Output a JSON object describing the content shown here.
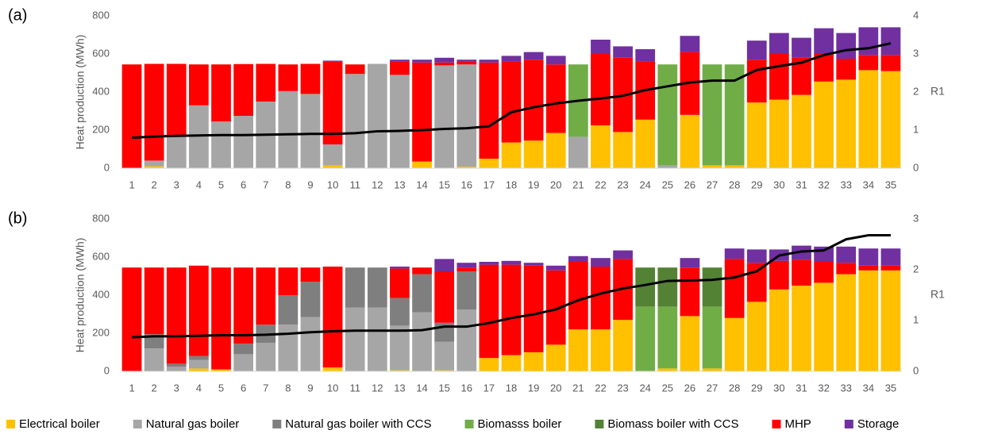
{
  "chart_data": [
    {
      "type": "bar",
      "stacked": true,
      "label": "(a)",
      "ylabel": "Heat production (MWh)",
      "y2label": "R1",
      "categories": [
        "1",
        "2",
        "3",
        "4",
        "5",
        "6",
        "7",
        "8",
        "9",
        "10",
        "11",
        "12",
        "13",
        "14",
        "15",
        "16",
        "17",
        "18",
        "19",
        "20",
        "21",
        "22",
        "23",
        "24",
        "25",
        "26",
        "27",
        "28",
        "29",
        "30",
        "31",
        "32",
        "33",
        "34",
        "35"
      ],
      "ylim": [
        0,
        800
      ],
      "yticks": [
        0,
        200,
        400,
        600,
        800
      ],
      "y2lim": [
        0,
        4
      ],
      "y2ticks": [
        0,
        1,
        2,
        3,
        4
      ],
      "grid": false,
      "series": [
        {
          "name": "Electrical boiler",
          "color": "#ffc000",
          "values": [
            0,
            10,
            0,
            0,
            0,
            0,
            0,
            0,
            0,
            15,
            0,
            0,
            0,
            35,
            0,
            8,
            50,
            135,
            145,
            185,
            0,
            225,
            190,
            255,
            0,
            280,
            15,
            15,
            345,
            360,
            385,
            455,
            465,
            515,
            510
          ]
        },
        {
          "name": "Natural gas boiler",
          "color": "#a6a6a6",
          "values": [
            0,
            30,
            165,
            330,
            245,
            275,
            350,
            405,
            390,
            110,
            495,
            548,
            490,
            0,
            540,
            537,
            0,
            0,
            0,
            0,
            165,
            0,
            0,
            0,
            15,
            0,
            0,
            0,
            0,
            0,
            0,
            0,
            0,
            0,
            0
          ]
        },
        {
          "name": "Natural gas boiler with CCS",
          "color": "#7f7f7f",
          "values": [
            0,
            0,
            0,
            0,
            0,
            0,
            0,
            0,
            0,
            0,
            0,
            0,
            0,
            0,
            0,
            0,
            0,
            0,
            0,
            0,
            0,
            0,
            0,
            0,
            0,
            0,
            0,
            0,
            0,
            0,
            0,
            0,
            0,
            0,
            0
          ]
        },
        {
          "name": "Biomasss boiler",
          "color": "#70ad47",
          "values": [
            0,
            0,
            0,
            0,
            0,
            0,
            0,
            0,
            0,
            0,
            0,
            0,
            0,
            0,
            0,
            0,
            0,
            0,
            0,
            0,
            380,
            0,
            0,
            0,
            530,
            0,
            530,
            530,
            0,
            0,
            0,
            0,
            0,
            0,
            0
          ]
        },
        {
          "name": "Biomass boiler with CCS",
          "color": "#548235",
          "values": [
            0,
            0,
            0,
            0,
            0,
            0,
            0,
            0,
            0,
            0,
            0,
            0,
            0,
            0,
            0,
            0,
            0,
            0,
            0,
            0,
            0,
            0,
            0,
            0,
            0,
            0,
            0,
            0,
            0,
            0,
            0,
            0,
            0,
            0,
            0
          ]
        },
        {
          "name": "MHP",
          "color": "#ff0000",
          "values": [
            545,
            508,
            383,
            215,
            300,
            272,
            198,
            140,
            158,
            435,
            50,
            0,
            70,
            520,
            15,
            15,
            505,
            425,
            425,
            360,
            0,
            375,
            390,
            305,
            0,
            330,
            0,
            0,
            225,
            240,
            195,
            145,
            110,
            80,
            85
          ]
        },
        {
          "name": "Storage",
          "color": "#7030a0",
          "values": [
            0,
            0,
            0,
            0,
            0,
            0,
            0,
            0,
            0,
            5,
            0,
            0,
            10,
            15,
            25,
            10,
            15,
            30,
            40,
            45,
            0,
            75,
            60,
            65,
            0,
            85,
            0,
            0,
            100,
            110,
            105,
            135,
            135,
            145,
            145
          ]
        },
        {
          "type": "line",
          "axis": "y2",
          "color": "#000000",
          "values": [
            0.8,
            0.83,
            0.85,
            0.86,
            0.87,
            0.87,
            0.88,
            0.89,
            0.9,
            0.9,
            0.92,
            0.97,
            0.98,
            1.0,
            1.03,
            1.05,
            1.1,
            1.47,
            1.6,
            1.7,
            1.77,
            1.83,
            1.9,
            2.05,
            2.15,
            2.25,
            2.3,
            2.3,
            2.58,
            2.68,
            2.77,
            2.97,
            3.1,
            3.15,
            3.28
          ]
        }
      ]
    },
    {
      "type": "bar",
      "stacked": true,
      "label": "(b)",
      "ylabel": "Heat production (MWh)",
      "y2label": "R1",
      "categories": [
        "1",
        "2",
        "3",
        "4",
        "5",
        "6",
        "7",
        "8",
        "9",
        "10",
        "11",
        "12",
        "13",
        "14",
        "15",
        "16",
        "17",
        "18",
        "19",
        "20",
        "21",
        "22",
        "23",
        "24",
        "25",
        "26",
        "27",
        "28",
        "29",
        "30",
        "31",
        "32",
        "33",
        "34",
        "35"
      ],
      "ylim": [
        0,
        800
      ],
      "yticks": [
        0,
        200,
        400,
        600,
        800
      ],
      "y2lim": [
        0,
        3
      ],
      "y2ticks": [
        0,
        1,
        2,
        3
      ],
      "grid": false,
      "series": [
        {
          "color": "#ffc000",
          "values": [
            0,
            0,
            0,
            15,
            10,
            0,
            0,
            0,
            0,
            20,
            0,
            0,
            5,
            0,
            5,
            0,
            70,
            85,
            100,
            140,
            220,
            220,
            270,
            0,
            15,
            290,
            15,
            280,
            365,
            430,
            450,
            465,
            510,
            530,
            530
          ]
        },
        {
          "color": "#a6a6a6",
          "values": [
            0,
            120,
            25,
            45,
            0,
            90,
            150,
            245,
            285,
            0,
            335,
            335,
            235,
            310,
            150,
            325,
            0,
            0,
            0,
            0,
            0,
            0,
            0,
            0,
            0,
            0,
            0,
            0,
            0,
            0,
            0,
            0,
            0,
            0,
            0
          ]
        },
        {
          "color": "#7f7f7f",
          "values": [
            0,
            75,
            15,
            20,
            0,
            55,
            95,
            155,
            185,
            0,
            210,
            210,
            145,
            200,
            100,
            200,
            0,
            0,
            0,
            0,
            0,
            0,
            0,
            0,
            0,
            0,
            0,
            0,
            0,
            0,
            0,
            0,
            0,
            0,
            0
          ]
        },
        {
          "color": "#70ad47",
          "values": [
            0,
            0,
            0,
            0,
            0,
            0,
            0,
            0,
            0,
            0,
            0,
            0,
            0,
            0,
            0,
            0,
            0,
            0,
            0,
            0,
            0,
            0,
            0,
            340,
            325,
            0,
            325,
            0,
            0,
            0,
            0,
            0,
            0,
            0,
            0
          ]
        },
        {
          "color": "#548235",
          "values": [
            0,
            0,
            0,
            0,
            0,
            0,
            0,
            0,
            0,
            0,
            0,
            0,
            0,
            0,
            0,
            0,
            0,
            0,
            0,
            0,
            0,
            0,
            0,
            205,
            205,
            0,
            205,
            0,
            0,
            0,
            0,
            0,
            0,
            0,
            0
          ]
        },
        {
          "color": "#ff0000",
          "values": [
            545,
            350,
            505,
            475,
            535,
            400,
            300,
            145,
            75,
            530,
            0,
            0,
            155,
            35,
            270,
            20,
            490,
            475,
            455,
            390,
            355,
            330,
            320,
            0,
            0,
            255,
            0,
            310,
            205,
            150,
            135,
            110,
            60,
            25,
            25
          ]
        },
        {
          "color": "#7030a0",
          "values": [
            0,
            0,
            0,
            0,
            0,
            0,
            0,
            0,
            0,
            0,
            0,
            0,
            10,
            0,
            65,
            25,
            15,
            20,
            15,
            25,
            30,
            45,
            45,
            0,
            0,
            50,
            0,
            55,
            70,
            60,
            75,
            80,
            85,
            90,
            90
          ]
        },
        {
          "type": "line",
          "axis": "y2",
          "color": "#000000",
          "values": [
            0.67,
            0.69,
            0.69,
            0.7,
            0.71,
            0.71,
            0.72,
            0.74,
            0.77,
            0.79,
            0.8,
            0.8,
            0.8,
            0.81,
            0.88,
            0.88,
            0.95,
            1.05,
            1.12,
            1.22,
            1.4,
            1.53,
            1.63,
            1.7,
            1.78,
            1.79,
            1.8,
            1.85,
            1.97,
            2.28,
            2.36,
            2.38,
            2.6,
            2.68,
            2.68
          ]
        }
      ]
    }
  ]
}
